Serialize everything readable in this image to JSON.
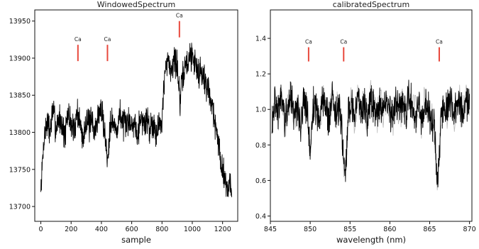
{
  "chart_data": [
    {
      "type": "line",
      "title": "WindowedSpectrum",
      "xlabel": "sample",
      "ylabel": "",
      "xlim": [
        -40,
        1300
      ],
      "ylim": [
        13680,
        13965
      ],
      "xticks": [
        0,
        200,
        400,
        600,
        800,
        1000,
        1200
      ],
      "yticks": [
        13700,
        13750,
        13800,
        13850,
        13900,
        13950
      ],
      "grid": false,
      "annotations": [
        {
          "label": "Ca",
          "x": 245,
          "y_low": 13896,
          "y_high": 13918
        },
        {
          "label": "Ca",
          "x": 440,
          "y_low": 13896,
          "y_high": 13918
        },
        {
          "label": "Ca",
          "x": 915,
          "y_low": 13928,
          "y_high": 13950
        }
      ],
      "series": [
        {
          "x": [
            0,
            20,
            40,
            60,
            80,
            100,
            120,
            140,
            160,
            180,
            200,
            220,
            240,
            260,
            280,
            300,
            320,
            340,
            360,
            380,
            400,
            420,
            440,
            460,
            480,
            500,
            520,
            540,
            560,
            580,
            600,
            620,
            640,
            660,
            680,
            700,
            720,
            740,
            760,
            780,
            800,
            820,
            840,
            860,
            880,
            900,
            920,
            940,
            960,
            980,
            1000,
            1020,
            1040,
            1060,
            1080,
            1100,
            1120,
            1140,
            1160,
            1180,
            1200,
            1220,
            1240,
            1260
          ],
          "y": [
            13720,
            13790,
            13815,
            13800,
            13830,
            13805,
            13820,
            13810,
            13795,
            13825,
            13812,
            13800,
            13830,
            13810,
            13790,
            13822,
            13808,
            13815,
            13800,
            13825,
            13830,
            13805,
            13760,
            13820,
            13810,
            13800,
            13825,
            13815,
            13805,
            13820,
            13808,
            13815,
            13800,
            13822,
            13810,
            13818,
            13805,
            13815,
            13800,
            13810,
            13820,
            13880,
            13895,
            13885,
            13900,
            13890,
            13840,
            13880,
            13890,
            13900,
            13905,
            13895,
            13880,
            13885,
            13870,
            13860,
            13850,
            13825,
            13800,
            13775,
            13750,
            13735,
            13725,
            13730
          ]
        }
      ]
    },
    {
      "type": "line",
      "title": "calibratedSpectrum",
      "xlabel": "wavelength (nm)",
      "ylabel": "",
      "xlim": [
        845,
        870.3
      ],
      "ylim": [
        0.37,
        1.56
      ],
      "xticks": [
        845,
        850,
        855,
        860,
        865,
        870
      ],
      "yticks": [
        0.4,
        0.6,
        0.8,
        1.0,
        1.2,
        1.4
      ],
      "grid": false,
      "annotations": [
        {
          "label": "Ca",
          "x": 849.8,
          "y_low": 1.27,
          "y_high": 1.35
        },
        {
          "label": "Ca",
          "x": 854.2,
          "y_low": 1.27,
          "y_high": 1.35
        },
        {
          "label": "Ca",
          "x": 866.2,
          "y_low": 1.27,
          "y_high": 1.35
        }
      ],
      "series": [
        {
          "x": [
            845.2,
            845.6,
            846.0,
            846.4,
            846.8,
            847.2,
            847.6,
            848.0,
            848.4,
            848.8,
            849.2,
            849.6,
            850.0,
            850.4,
            850.8,
            851.2,
            851.6,
            852.0,
            852.4,
            852.8,
            853.2,
            853.6,
            854.0,
            854.4,
            854.8,
            855.2,
            855.6,
            856.0,
            856.4,
            856.8,
            857.2,
            857.6,
            858.0,
            858.4,
            858.8,
            859.2,
            859.6,
            860.0,
            860.4,
            860.8,
            861.2,
            861.6,
            862.0,
            862.4,
            862.8,
            863.2,
            863.6,
            864.0,
            864.4,
            864.8,
            865.2,
            865.6,
            866.0,
            866.4,
            866.8,
            867.2,
            867.6,
            868.0,
            868.4,
            868.8,
            869.2,
            869.6,
            870.0
          ],
          "y": [
            0.95,
            1.05,
            0.98,
            1.1,
            0.92,
            1.02,
            1.08,
            0.96,
            1.03,
            0.9,
            1.06,
            0.99,
            0.78,
            1.04,
            1.0,
            0.93,
            1.07,
            1.01,
            0.95,
            1.09,
            0.97,
            1.02,
            0.85,
            0.6,
            1.0,
            1.05,
            0.94,
            1.08,
            0.99,
            1.03,
            0.92,
            1.06,
            1.0,
            0.96,
            1.04,
            0.98,
            1.07,
            1.01,
            0.93,
            1.05,
            0.99,
            1.02,
            0.95,
            1.08,
            1.0,
            0.97,
            1.04,
            0.92,
            1.06,
            1.01,
            0.96,
            0.9,
            0.55,
            0.95,
            1.03,
            0.99,
            1.06,
            0.94,
            1.02,
            1.05,
            0.97,
            1.04,
            1.0
          ]
        }
      ]
    }
  ]
}
